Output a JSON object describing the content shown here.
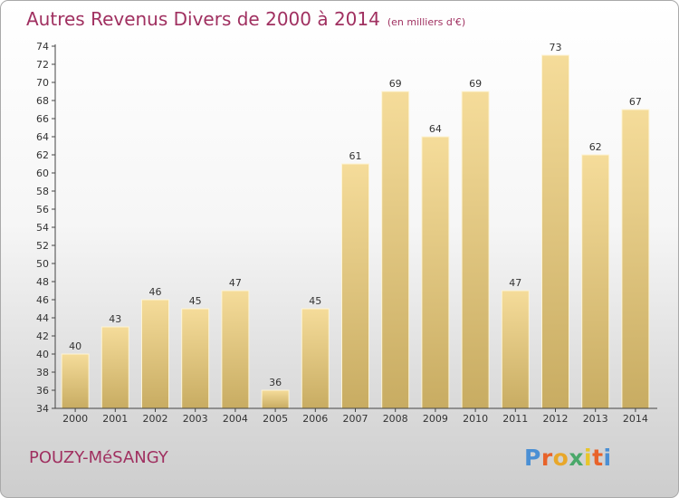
{
  "header": {
    "title": "Autres Revenus Divers de 2000 à 2014",
    "unit": "(en milliers d'€)"
  },
  "footer": {
    "town": "POUZY-MéSANGY",
    "brand": "Proxiti"
  },
  "colors": {
    "title": "#a03060",
    "bar_light": "#f5dc9a",
    "bar_dark": "#c8ac62",
    "brand_letters": [
      "#4a8fd4",
      "#e8632a",
      "#e8a72a",
      "#4aa86a",
      "#e8c52a",
      "#e8632a",
      "#4a8fd4"
    ]
  },
  "chart_data": {
    "type": "bar",
    "title": "Autres Revenus Divers de 2000 à 2014",
    "categories": [
      "2000",
      "2001",
      "2002",
      "2003",
      "2004",
      "2005",
      "2006",
      "2007",
      "2008",
      "2009",
      "2010",
      "2011",
      "2012",
      "2013",
      "2014"
    ],
    "values": [
      40,
      43,
      46,
      45,
      47,
      36,
      45,
      61,
      69,
      64,
      69,
      47,
      73,
      62,
      67
    ],
    "ylim": [
      34,
      74
    ],
    "yticks": [
      34,
      36,
      38,
      40,
      42,
      44,
      46,
      48,
      50,
      52,
      54,
      56,
      58,
      60,
      62,
      64,
      66,
      68,
      70,
      72,
      74
    ],
    "grid": false,
    "xlabel": "",
    "ylabel": ""
  }
}
